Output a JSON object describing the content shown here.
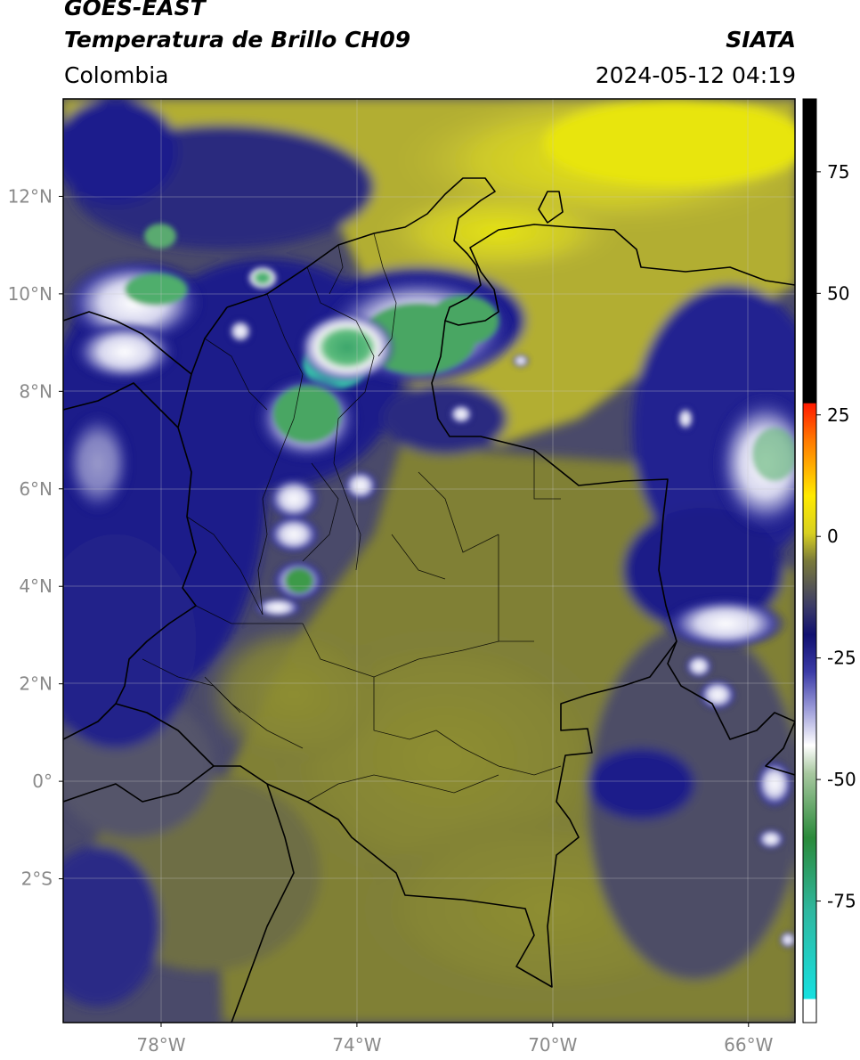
{
  "header": {
    "satellite": "GOES-EAST",
    "product": "Temperatura de Brillo CH09",
    "brand": "SIATA",
    "region": "Colombia",
    "datetime": "2024-05-12 04:19"
  },
  "map": {
    "lon_ticks": [
      {
        "value": -78,
        "label": "78°W"
      },
      {
        "value": -74,
        "label": "74°W"
      },
      {
        "value": -70,
        "label": "70°W"
      },
      {
        "value": -66,
        "label": "66°W"
      }
    ],
    "lat_ticks": [
      {
        "value": 12,
        "label": "12°N"
      },
      {
        "value": 10,
        "label": "10°N"
      },
      {
        "value": 8,
        "label": "8°N"
      },
      {
        "value": 6,
        "label": "6°N"
      },
      {
        "value": 4,
        "label": "4°N"
      },
      {
        "value": 2,
        "label": "2°N"
      },
      {
        "value": 0,
        "label": "0°"
      },
      {
        "value": -2,
        "label": "2°S"
      }
    ],
    "colors": {
      "warm_band": "#8a8a2e",
      "cold_band": "#1a1a8c",
      "cloud_white": "#f2f2f2",
      "deep_green": "#3aa46a",
      "cyan": "#40d0b8"
    }
  },
  "colorbar": {
    "ticks": [
      {
        "value": 75,
        "label": "75"
      },
      {
        "value": 50,
        "label": "50"
      },
      {
        "value": 25,
        "label": "25"
      },
      {
        "value": 0,
        "label": "0"
      },
      {
        "value": -25,
        "label": "-25"
      },
      {
        "value": -50,
        "label": "-50"
      },
      {
        "value": -75,
        "label": "-75"
      }
    ]
  }
}
